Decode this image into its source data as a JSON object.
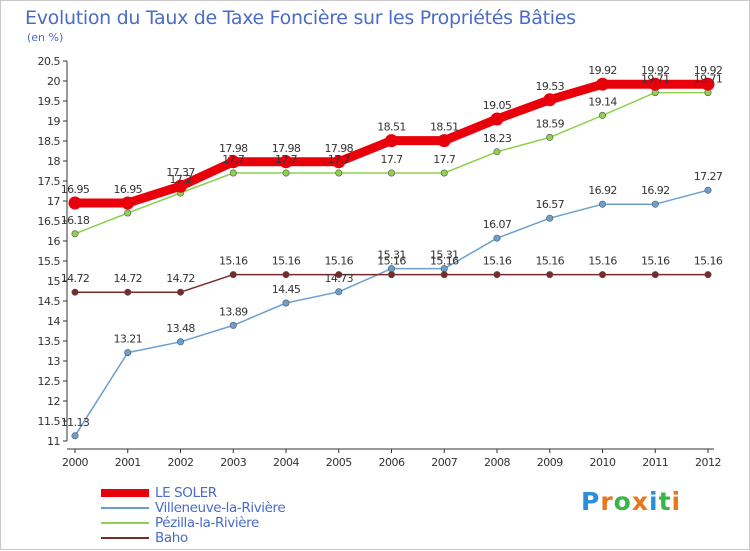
{
  "title": "Evolution du Taux de Taxe Foncière sur les Propriétés Bâties",
  "unit_label": "(en %)",
  "logo": {
    "text": "Proxiti",
    "letters": [
      {
        "ch": "P",
        "color": "#2a8fd6"
      },
      {
        "ch": "r",
        "color": "#e8761a"
      },
      {
        "ch": "o",
        "color": "#3ab54a"
      },
      {
        "ch": "x",
        "color": "#e8761a"
      },
      {
        "ch": "i",
        "color": "#2a8fd6"
      },
      {
        "ch": "t",
        "color": "#3ab54a"
      },
      {
        "ch": "i",
        "color": "#e8761a"
      }
    ]
  },
  "chart_data": {
    "type": "line",
    "x": [
      2000,
      2001,
      2002,
      2003,
      2004,
      2005,
      2006,
      2007,
      2008,
      2009,
      2010,
      2011,
      2012
    ],
    "ylim": [
      11,
      20.5
    ],
    "yticks": [
      11,
      11.5,
      12,
      12.5,
      13,
      13.5,
      14,
      14.5,
      15,
      15.5,
      16,
      16.5,
      17,
      17.5,
      18,
      18.5,
      19,
      19.5,
      20,
      20.5
    ],
    "grid": false,
    "legend_position": "bottom-left",
    "series": [
      {
        "name": "LE SOLER",
        "color": "#e8000b",
        "values": [
          16.95,
          16.95,
          17.37,
          17.98,
          17.98,
          17.98,
          18.51,
          18.51,
          19.05,
          19.53,
          19.92,
          19.92,
          19.92
        ],
        "labels": [
          "16.95",
          "16.95",
          "17.37",
          "17.98",
          "17.98",
          "17.98",
          "18.51",
          "18.51",
          "19.05",
          "19.53",
          "19.92",
          "19.92",
          "19.92"
        ]
      },
      {
        "name": "Villeneuve-la-Rivière",
        "color": "#6a9fd0",
        "values": [
          11.13,
          13.21,
          13.48,
          13.89,
          14.45,
          14.73,
          15.31,
          15.31,
          16.07,
          16.57,
          16.92,
          16.92,
          17.27
        ],
        "labels": [
          "11.13",
          "13.21",
          "13.48",
          "13.89",
          "14.45",
          "14.73",
          "15.31",
          "15.31",
          "16.07",
          "16.57",
          "16.92",
          "16.92",
          "17.27"
        ]
      },
      {
        "name": "Pézilla-la-Rivière",
        "color": "#8fd14f",
        "values": [
          16.18,
          16.7,
          17.2,
          17.7,
          17.7,
          17.7,
          17.7,
          17.7,
          18.23,
          18.59,
          19.14,
          19.71,
          19.71
        ],
        "labels": [
          "16.18",
          "",
          "17.2",
          "17.7",
          "17.7",
          "17.7",
          "17.7",
          "17.7",
          "18.23",
          "18.59",
          "19.14",
          "19.71",
          "19.71"
        ]
      },
      {
        "name": "Baho",
        "color": "#7b2a2a",
        "values": [
          14.72,
          14.72,
          14.72,
          15.16,
          15.16,
          15.16,
          15.16,
          15.16,
          15.16,
          15.16,
          15.16,
          15.16,
          15.16
        ],
        "labels": [
          "14.72",
          "14.72",
          "14.72",
          "15.16",
          "15.16",
          "15.16",
          "15.16",
          "15.16",
          "15.16",
          "15.16",
          "15.16",
          "15.16",
          "15.16"
        ]
      }
    ]
  }
}
